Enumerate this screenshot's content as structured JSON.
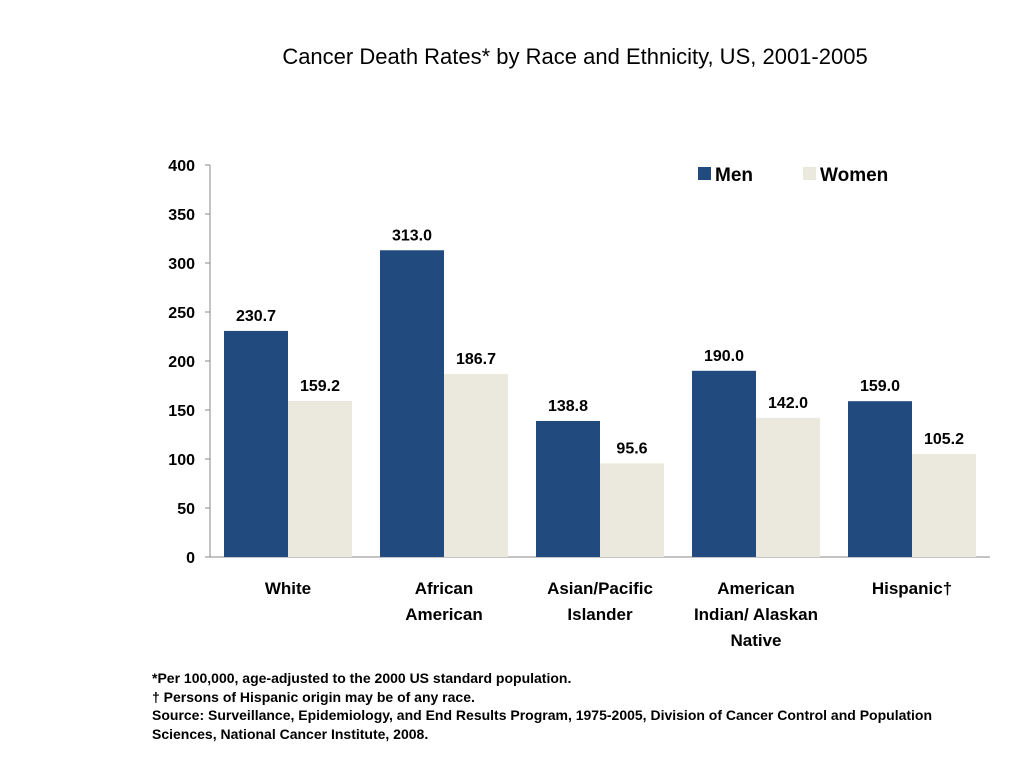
{
  "chart_data": {
    "type": "bar",
    "title": "Cancer Death Rates* by Race and Ethnicity, US, 2001-2005",
    "xlabel": "",
    "ylabel": "",
    "ylim": [
      0,
      400
    ],
    "yticks": [
      "0",
      "50",
      "100",
      "150",
      "200",
      "250",
      "300",
      "350",
      "400"
    ],
    "categories": [
      [
        "White"
      ],
      [
        "African",
        "American"
      ],
      [
        "Asian/Pacific",
        "Islander"
      ],
      [
        "American",
        "Indian/ Alaskan",
        "Native"
      ],
      [
        "Hispanic†"
      ]
    ],
    "series": [
      {
        "name": "Men",
        "color": "#214a7e",
        "values": [
          230.7,
          313.0,
          138.8,
          190.0,
          159.0
        ],
        "labels": [
          "230.7",
          "313.0",
          "138.8",
          "190.0",
          "159.0"
        ]
      },
      {
        "name": "Women",
        "color": "#ebe8de",
        "values": [
          159.2,
          186.7,
          95.6,
          142.0,
          105.2
        ],
        "labels": [
          "159.2",
          "186.7",
          "95.6",
          "142.0",
          "105.2"
        ]
      }
    ],
    "legend": "top-right",
    "grid": false
  },
  "footnotes": [
    "*Per 100,000, age-adjusted to the 2000 US standard population.",
    "† Persons of Hispanic origin may be of any race.",
    "Source: Surveillance, Epidemiology, and End Results Program, 1975-2005, Division of Cancer Control and Population Sciences, National Cancer Institute, 2008."
  ]
}
